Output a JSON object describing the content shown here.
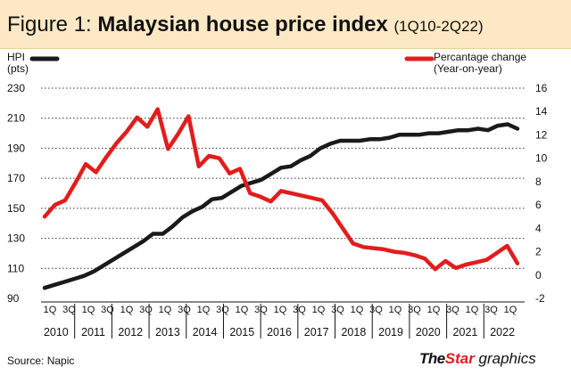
{
  "header": {
    "figure_label": "Figure 1:",
    "title": "Malaysian house price index",
    "range": "(1Q10-2Q22)"
  },
  "legend": {
    "left_name": "HPI",
    "left_unit": "(pts)",
    "right_name": "Percantage change",
    "right_unit": "(Year-on-year)"
  },
  "footer": {
    "source": "Source: Napic",
    "brand_1": "The",
    "brand_2": "Star",
    "brand_3": " graphics"
  },
  "colors": {
    "hpi": "#1a1a1a",
    "change": "#e11d1d",
    "header_bg": "#fce8c4"
  },
  "chart_data": {
    "type": "line",
    "title": "Malaysian house price index (1Q10-2Q22)",
    "x_label": "",
    "quarter_ticks": [
      "1Q",
      "3Q",
      "1Q",
      "3Q",
      "1Q",
      "3Q",
      "1Q",
      "3Q",
      "1Q",
      "3Q",
      "1Q",
      "3Q",
      "1Q",
      "3Q",
      "1Q",
      "3Q",
      "1Q",
      "3Q",
      "1Q",
      "3Q",
      "1Q",
      "3Q",
      "1Q",
      "3Q",
      "1Q"
    ],
    "year_labels": [
      "2010",
      "2011",
      "2012",
      "2013",
      "2014",
      "2015",
      "2016",
      "2017",
      "2018",
      "2019",
      "2020",
      "2021",
      "2022"
    ],
    "left_axis": {
      "label": "HPI (pts)",
      "ticks": [
        90,
        110,
        130,
        150,
        170,
        190,
        210,
        230
      ],
      "range": [
        90,
        230
      ]
    },
    "right_axis": {
      "label": "Percantage change (Year-on-year)",
      "ticks": [
        -2,
        0,
        2,
        4,
        6,
        8,
        10,
        12,
        14,
        16
      ],
      "range": [
        -2,
        16
      ]
    },
    "series": [
      {
        "name": "HPI",
        "axis": "left",
        "values": [
          97,
          99,
          101,
          103,
          105,
          108,
          112,
          116,
          120,
          124,
          128,
          133,
          133,
          138,
          144,
          148,
          151,
          156,
          157,
          161,
          165,
          167,
          169,
          173,
          177,
          178,
          182,
          185,
          190,
          193,
          195,
          195,
          195,
          196,
          196,
          197,
          199,
          199,
          199,
          200,
          200,
          201,
          202,
          202,
          203,
          202,
          205,
          206,
          203
        ]
      },
      {
        "name": "Percantage change",
        "axis": "right",
        "values": [
          5.0,
          6.0,
          6.4,
          7.9,
          9.5,
          8.8,
          10.1,
          11.3,
          12.3,
          13.5,
          12.7,
          14.2,
          10.8,
          12.1,
          13.6,
          9.3,
          10.2,
          10.0,
          8.7,
          9.1,
          7.0,
          6.7,
          6.3,
          7.2,
          7.0,
          6.8,
          6.6,
          6.4,
          5.3,
          4.0,
          2.7,
          2.4,
          2.3,
          2.2,
          2.0,
          1.9,
          1.7,
          1.4,
          0.5,
          1.2,
          0.6,
          0.9,
          1.1,
          1.3,
          1.9,
          2.5,
          1.0
        ]
      }
    ]
  }
}
